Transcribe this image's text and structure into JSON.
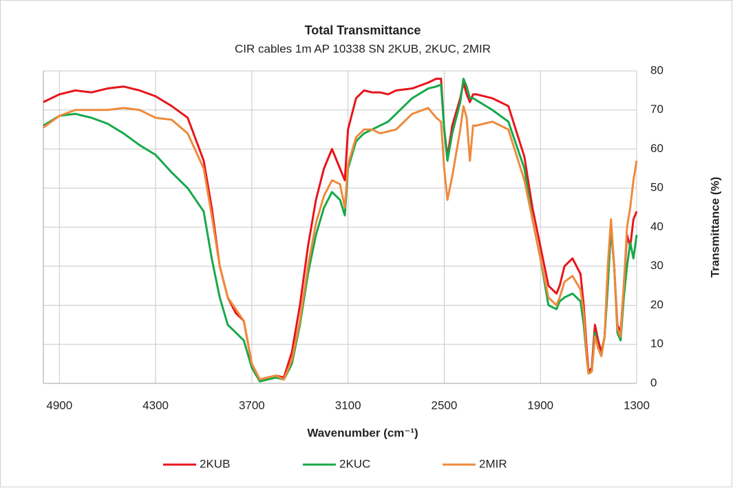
{
  "chart_data": {
    "type": "line",
    "title": "Total Transmittance",
    "subtitle": "CIR cables 1m AP 10338  SN 2KUB, 2KUC, 2MIR",
    "x_label": "Wavenumber  (cm⁻¹)",
    "y_label": "Transmittance (%)",
    "xlim": [
      5000,
      1300
    ],
    "xticks": [
      4900,
      4300,
      3700,
      3100,
      2500,
      1900,
      1300
    ],
    "ylim": [
      0,
      80
    ],
    "yticks": [
      0,
      10,
      20,
      30,
      40,
      50,
      60,
      70,
      80
    ],
    "y_axis_side": "right",
    "grid": true,
    "legend": "bottom",
    "x": [
      5000,
      4900,
      4800,
      4700,
      4600,
      4500,
      4400,
      4300,
      4200,
      4100,
      4000,
      3950,
      3900,
      3850,
      3800,
      3750,
      3700,
      3650,
      3600,
      3550,
      3500,
      3450,
      3400,
      3350,
      3300,
      3250,
      3200,
      3150,
      3120,
      3100,
      3050,
      3000,
      2950,
      2900,
      2850,
      2800,
      2700,
      2600,
      2550,
      2520,
      2500,
      2480,
      2450,
      2400,
      2380,
      2360,
      2340,
      2320,
      2300,
      2200,
      2100,
      2000,
      1950,
      1900,
      1850,
      1800,
      1780,
      1750,
      1700,
      1650,
      1630,
      1610,
      1600,
      1580,
      1560,
      1540,
      1520,
      1500,
      1480,
      1460,
      1440,
      1420,
      1400,
      1380,
      1360,
      1340,
      1320,
      1300
    ],
    "series": [
      {
        "name": "2KUB",
        "color": "#e8141a",
        "values": [
          72,
          74,
          75,
          74.5,
          75.5,
          76,
          75,
          73.5,
          71,
          68,
          57,
          45,
          30,
          22,
          18,
          16,
          5,
          1,
          1.5,
          2,
          1.5,
          8,
          20,
          35,
          47,
          55,
          60,
          55,
          52,
          65,
          73,
          75,
          74.5,
          74.5,
          74,
          75,
          75.5,
          77,
          78,
          78,
          65,
          58,
          66,
          73,
          77,
          74,
          72,
          74,
          74,
          73,
          71,
          58,
          45,
          35,
          25,
          23,
          25,
          30,
          32,
          28,
          20,
          8,
          3,
          4,
          15,
          11,
          8,
          12,
          25,
          40,
          30,
          15,
          13,
          25,
          38,
          35,
          42,
          44
        ]
      },
      {
        "name": "2KUC",
        "color": "#17a84a",
        "values": [
          66,
          68.5,
          69,
          68,
          66.5,
          64,
          61,
          58.5,
          54,
          50,
          44,
          32,
          22,
          15,
          13,
          11,
          4,
          0.5,
          1,
          1.5,
          1,
          5,
          15,
          28,
          38,
          45,
          49,
          47,
          43,
          55,
          62,
          64,
          65,
          66,
          67,
          69,
          73,
          75.5,
          76,
          76.5,
          65,
          57,
          64,
          72,
          78,
          76,
          73,
          73,
          72.5,
          70,
          67,
          55,
          42,
          32,
          20,
          19,
          21,
          22,
          23,
          21,
          15,
          6,
          2.5,
          3,
          13,
          9,
          7,
          12,
          25,
          40,
          30,
          13,
          11,
          22,
          30,
          36,
          32,
          38
        ]
      },
      {
        "name": "2MIR",
        "color": "#ee8a3c",
        "values": [
          65.5,
          68.5,
          70,
          70,
          70,
          70.5,
          70,
          68,
          67.5,
          64,
          55,
          43,
          30,
          22,
          19,
          16,
          5,
          1,
          1.5,
          2,
          1,
          6,
          16,
          30,
          41,
          48,
          52,
          51,
          45,
          56,
          63,
          65,
          65,
          64,
          64.5,
          65,
          69,
          70.5,
          68,
          67,
          55,
          47,
          53,
          65,
          71,
          68,
          57,
          66,
          66,
          67,
          65,
          52,
          42,
          32,
          22,
          20,
          22,
          26,
          27.5,
          24,
          18,
          6,
          2.5,
          3,
          12,
          9,
          7,
          12,
          30,
          42,
          30,
          14,
          12,
          25,
          40,
          45,
          52,
          57
        ]
      }
    ]
  }
}
